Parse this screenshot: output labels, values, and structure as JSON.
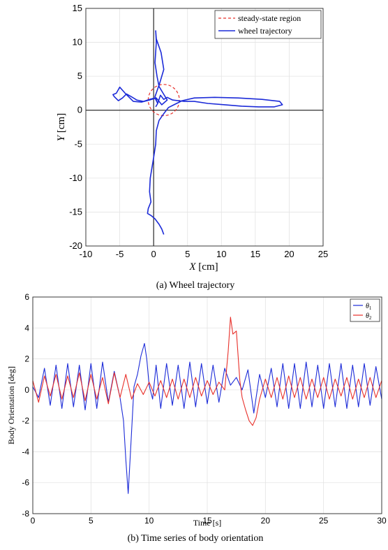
{
  "chart_data": [
    {
      "type": "line",
      "caption": "(a) Wheel trajectory",
      "xlabel_var": "X",
      "xlabel_unit": "[cm]",
      "ylabel_var": "Y",
      "ylabel_unit": "[cm]",
      "xlim": [
        -10,
        25
      ],
      "ylim": [
        -20,
        15
      ],
      "xticks": [
        -10,
        -5,
        0,
        5,
        10,
        15,
        20,
        25
      ],
      "yticks": [
        -20,
        -15,
        -10,
        -5,
        0,
        5,
        10,
        15
      ],
      "grid": true,
      "legend_position": "top-right",
      "series": [
        {
          "name": "steady-state region",
          "style": "dashed",
          "color": "#e8302a",
          "shape": "circle",
          "center": [
            1.5,
            1.5
          ],
          "radius": 2.3
        },
        {
          "name": "wheel trajectory",
          "style": "solid",
          "color": "#1c2bd8",
          "x": [
            0.3,
            0.6,
            0.2,
            0.9,
            1.5,
            1.1,
            0.4,
            0.3,
            0.4,
            0.2,
            0.5,
            0.8,
            1.4,
            2.0,
            1.2,
            0.4,
            -0.6,
            -1.8,
            -3.0,
            -4.2,
            -5.0,
            -5.5,
            -6.0,
            -5.8,
            -5.2,
            -4.6,
            -4.0,
            -3.3,
            -2.5,
            -1.5,
            -0.6,
            0.2,
            0.6,
            1.0,
            1.5,
            2.0,
            2.8,
            3.6,
            4.5,
            6.0,
            8.0,
            10.5,
            13.0,
            15.5,
            17.8,
            19.0,
            18.6,
            16.0,
            12.5,
            9.0,
            6.0,
            4.2,
            3.0,
            2.2,
            1.5,
            0.8,
            0.4,
            0.3,
            0.0,
            -0.5,
            -0.6,
            -0.4,
            -0.8,
            -0.9,
            -0.4,
            0.2,
            0.8,
            1.2,
            1.5
          ],
          "y": [
            0.5,
            1.0,
            2.0,
            4.0,
            6.0,
            8.5,
            10.5,
            11.7,
            10.0,
            7.0,
            5.0,
            3.5,
            2.5,
            1.5,
            0.8,
            1.8,
            1.5,
            1.2,
            1.3,
            2.5,
            3.4,
            2.5,
            2.3,
            2.0,
            1.4,
            1.8,
            2.4,
            2.0,
            1.5,
            1.3,
            1.6,
            1.8,
            1.0,
            2.2,
            1.6,
            1.9,
            1.5,
            1.4,
            1.3,
            1.3,
            1.0,
            0.8,
            0.6,
            0.5,
            0.5,
            0.8,
            1.3,
            1.6,
            1.8,
            1.9,
            1.8,
            1.4,
            0.8,
            0.4,
            -0.5,
            -1.5,
            -3.0,
            -5.0,
            -7.0,
            -10.0,
            -12.0,
            -13.5,
            -14.5,
            -15.2,
            -15.5,
            -16.0,
            -16.8,
            -17.5,
            -18.3
          ]
        }
      ]
    },
    {
      "type": "line",
      "caption": "(b) Time series of body orientation",
      "xlabel": "Time [s]",
      "ylabel": "Body Orientation [deg]",
      "xlim": [
        0,
        30
      ],
      "ylim": [
        -8,
        6
      ],
      "xticks": [
        0,
        5,
        10,
        15,
        20,
        25,
        30
      ],
      "yticks": [
        -8,
        -6,
        -4,
        -2,
        0,
        2,
        4,
        6
      ],
      "grid": true,
      "legend_position": "top-right",
      "series": [
        {
          "name": "θ1",
          "legend_base": "θ",
          "legend_sub": "1",
          "color": "#1c2bd8",
          "x": [
            0,
            0.5,
            1.0,
            1.5,
            2.0,
            2.5,
            3.0,
            3.5,
            4.0,
            4.5,
            5.0,
            5.5,
            6.0,
            6.5,
            7.0,
            7.5,
            7.8,
            8.0,
            8.2,
            8.4,
            8.7,
            9.0,
            9.3,
            9.6,
            9.8,
            10.0,
            10.3,
            10.6,
            11.0,
            11.5,
            12.0,
            12.5,
            13.0,
            13.5,
            14.0,
            14.5,
            15.0,
            15.5,
            16.0,
            16.5,
            17.0,
            17.5,
            18.0,
            18.5,
            19.0,
            19.5,
            20.0,
            20.5,
            21.0,
            21.5,
            22.0,
            22.5,
            23.0,
            23.5,
            24.0,
            24.5,
            25.0,
            25.5,
            26.0,
            26.5,
            27.0,
            27.5,
            28.0,
            28.5,
            29.0,
            29.5,
            30.0
          ],
          "y": [
            0.2,
            -0.5,
            1.4,
            -1.0,
            1.6,
            -1.2,
            1.7,
            -1.1,
            1.6,
            -1.3,
            1.7,
            -1.2,
            1.8,
            -0.8,
            1.2,
            -0.5,
            -2.0,
            -4.5,
            -6.7,
            -4.0,
            0.2,
            1.0,
            2.2,
            3.0,
            2.0,
            0.3,
            -0.6,
            1.6,
            -1.2,
            1.7,
            -1.0,
            1.6,
            -1.2,
            1.8,
            -1.1,
            1.7,
            -0.9,
            1.6,
            -0.8,
            1.4,
            0.3,
            0.8,
            0.0,
            1.3,
            -1.5,
            1.0,
            -0.5,
            1.4,
            -1.1,
            1.7,
            -1.2,
            1.7,
            -1.2,
            1.8,
            -1.1,
            1.6,
            -1.2,
            1.7,
            -1.1,
            1.7,
            -1.2,
            1.6,
            -1.1,
            1.7,
            -1.0,
            1.5,
            -0.6
          ]
        },
        {
          "name": "θ2",
          "legend_base": "θ",
          "legend_sub": "2",
          "color": "#e8302a",
          "x": [
            0,
            0.5,
            1.0,
            1.5,
            2.0,
            2.5,
            3.0,
            3.5,
            4.0,
            4.5,
            5.0,
            5.5,
            6.0,
            6.5,
            7.0,
            7.5,
            8.0,
            8.5,
            9.0,
            9.5,
            10.0,
            10.5,
            11.0,
            11.5,
            12.0,
            12.5,
            13.0,
            13.5,
            14.0,
            14.5,
            15.0,
            15.5,
            16.0,
            16.5,
            16.8,
            17.0,
            17.2,
            17.5,
            17.8,
            18.0,
            18.3,
            18.6,
            18.9,
            19.2,
            19.5,
            20.0,
            20.5,
            21.0,
            21.5,
            22.0,
            22.5,
            23.0,
            23.5,
            24.0,
            24.5,
            25.0,
            25.5,
            26.0,
            26.5,
            27.0,
            27.5,
            28.0,
            28.5,
            29.0,
            29.5,
            30.0
          ],
          "y": [
            0.6,
            -0.8,
            0.9,
            -0.4,
            1.0,
            -0.6,
            0.9,
            -0.5,
            1.1,
            -0.7,
            1.0,
            -0.6,
            0.8,
            -0.9,
            1.1,
            -0.5,
            1.0,
            -0.6,
            0.4,
            -0.3,
            0.5,
            -0.4,
            0.6,
            -0.5,
            0.7,
            -0.6,
            0.7,
            -0.5,
            0.8,
            -0.4,
            0.6,
            -0.3,
            0.5,
            0.0,
            2.5,
            4.7,
            3.6,
            3.8,
            0.6,
            -0.5,
            -1.3,
            -2.0,
            -2.3,
            -1.8,
            -0.6,
            0.7,
            -0.5,
            0.8,
            -0.6,
            0.9,
            -0.5,
            0.8,
            -0.6,
            0.7,
            -0.5,
            0.8,
            -0.6,
            0.7,
            -0.4,
            0.8,
            -0.6,
            0.7,
            -0.5,
            0.8,
            -0.5,
            0.6
          ]
        }
      ]
    }
  ]
}
